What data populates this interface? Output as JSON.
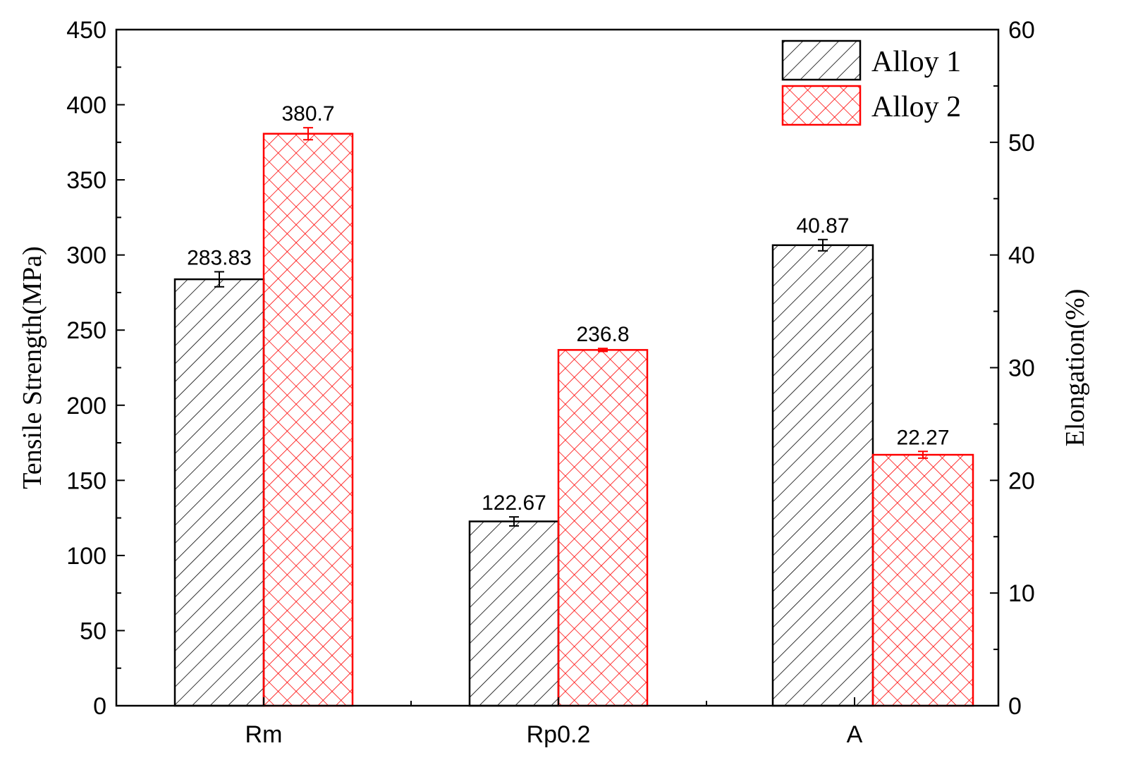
{
  "chart_data": {
    "type": "bar",
    "categories": [
      "Rm",
      "Rp0.2",
      "A"
    ],
    "left_axis": {
      "label": "Tensile Strength(MPa)",
      "ylim": [
        0,
        450
      ],
      "ticks": [
        0,
        50,
        100,
        150,
        200,
        250,
        300,
        350,
        400,
        450
      ]
    },
    "right_axis": {
      "label": "Elongation(%)",
      "ylim": [
        0,
        60
      ],
      "ticks": [
        0,
        10,
        20,
        30,
        40,
        50,
        60
      ]
    },
    "series": [
      {
        "name": "Alloy 1",
        "color": "#000000",
        "pattern": "diagonal-hatch",
        "values": [
          283.83,
          122.67,
          40.87
        ],
        "errors": [
          5,
          3,
          0.5
        ],
        "axes": [
          "left",
          "left",
          "right"
        ],
        "labels": [
          "283.83",
          "122.67",
          "40.87"
        ]
      },
      {
        "name": "Alloy 2",
        "color": "#ff0000",
        "pattern": "cross-hatch",
        "values": [
          380.7,
          236.8,
          22.27
        ],
        "errors": [
          4,
          1,
          0.3
        ],
        "axes": [
          "left",
          "left",
          "right"
        ],
        "labels": [
          "380.7",
          "236.8",
          "22.27"
        ]
      }
    ],
    "legend_position": "top-right",
    "grid": false
  }
}
